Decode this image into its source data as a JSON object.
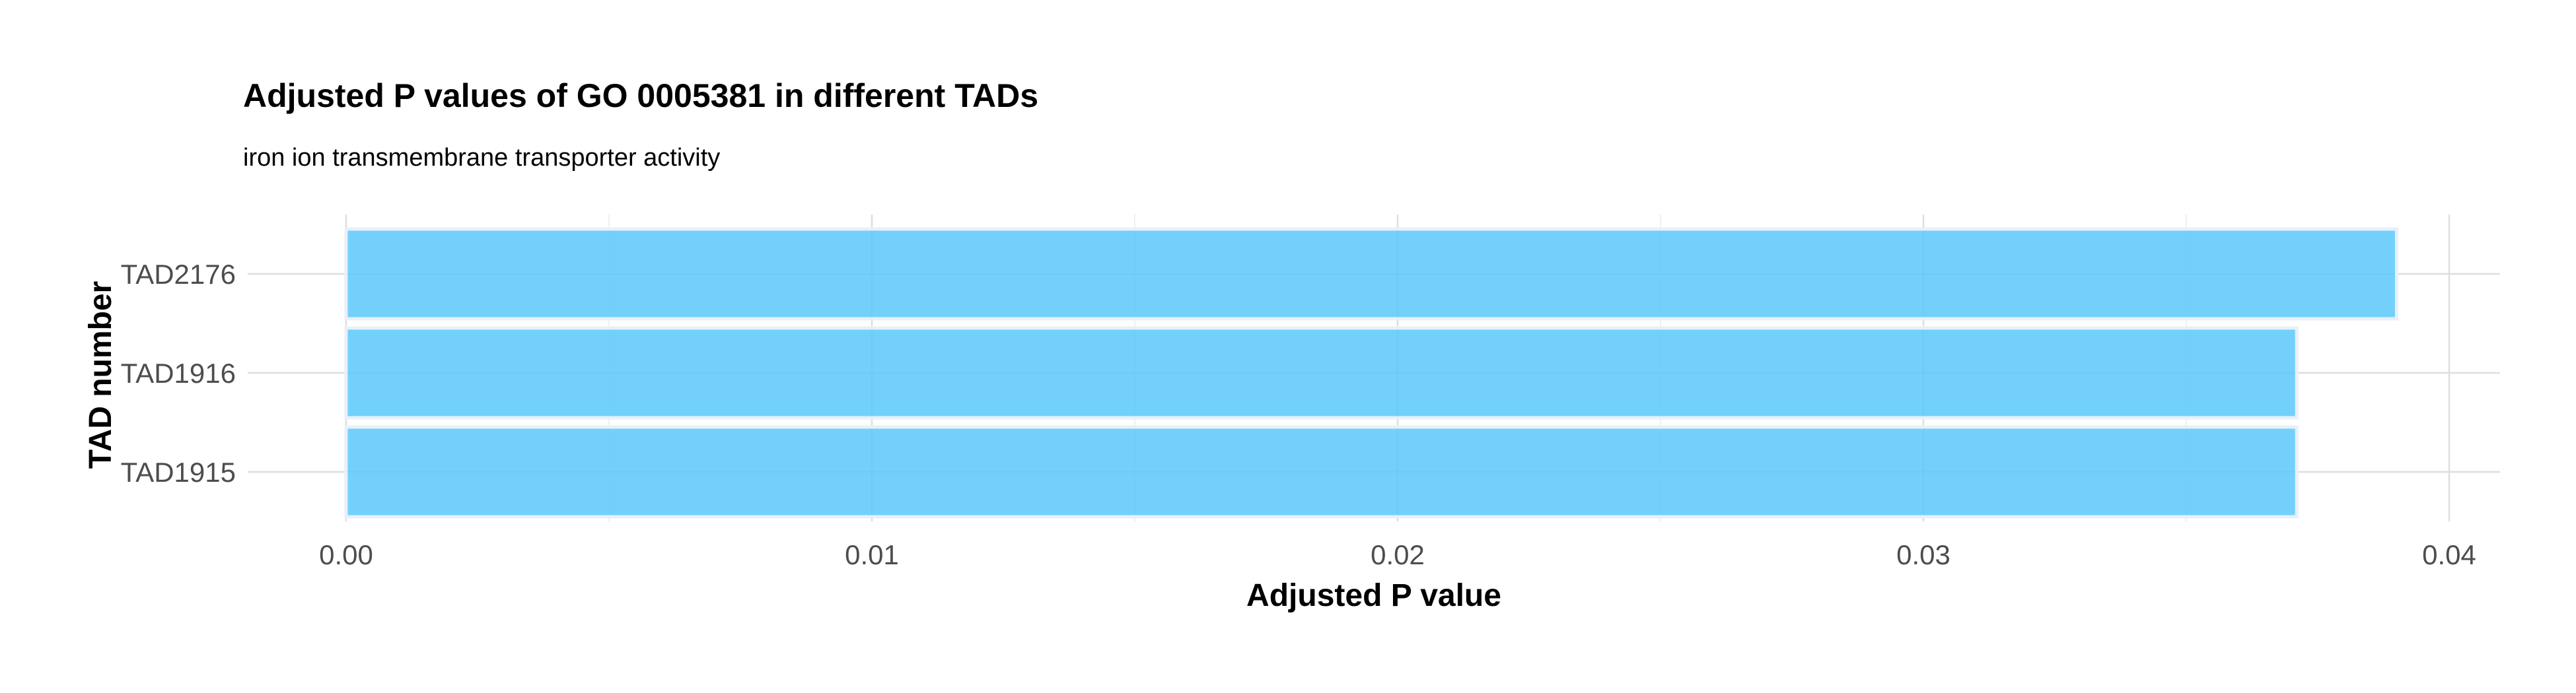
{
  "chart_data": {
    "type": "bar",
    "orientation": "horizontal",
    "title": "Adjusted P values of GO 0005381 in different TADs",
    "subtitle": "iron ion transmembrane transporter activity",
    "xlabel": "Adjusted P value",
    "ylabel": "TAD number",
    "categories": [
      "TAD2176",
      "TAD1916",
      "TAD1915"
    ],
    "values": [
      0.039,
      0.0371,
      0.0371
    ],
    "xlim": [
      0,
      0.041
    ],
    "xticks": [
      0,
      0.01,
      0.02,
      0.03,
      0.04
    ],
    "xtick_labels": [
      "0.00",
      "0.01",
      "0.02",
      "0.03",
      "0.04"
    ],
    "grid": true,
    "bar_color": "#5BC8FA"
  }
}
